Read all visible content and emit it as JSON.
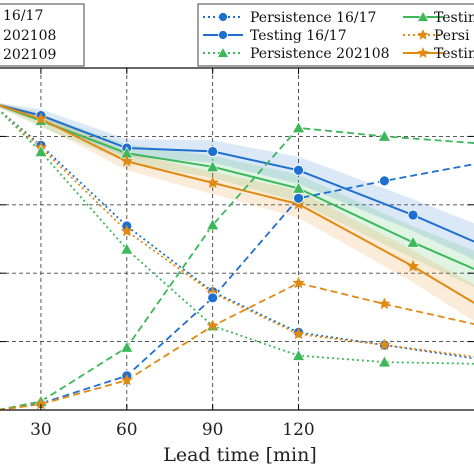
{
  "chart_data": {
    "type": "line",
    "xlabel": "Lead time [min]",
    "ylabel": "",
    "title": "",
    "x_ticks": [
      30,
      60,
      90,
      120
    ],
    "x_tick_labels": [
      "30",
      "60",
      "90",
      "120"
    ],
    "xlim": [
      15,
      182
    ],
    "ylim": [
      0,
      1
    ],
    "grid": true,
    "grid_style": "dashed",
    "left_legend_fragments": [
      "16/17",
      "202108",
      "202109"
    ],
    "legend_entries": [
      {
        "label": "Persistence 16/17",
        "color": "#1f6fd0",
        "style": "dotted",
        "marker": "circle"
      },
      {
        "label": "Testing 16/17",
        "color": "#1f6fd0",
        "style": "solid",
        "marker": "circle"
      },
      {
        "label": "Persistence 202108",
        "color": "#3cb85a",
        "style": "dotted",
        "marker": "triangle"
      },
      {
        "label": "Testin",
        "color": "#3cb85a",
        "style": "solid",
        "marker": "triangle"
      },
      {
        "label": "Persi",
        "color": "#e08a14",
        "style": "dotted",
        "marker": "star"
      },
      {
        "label": "Testin",
        "color": "#e08a14",
        "style": "solid",
        "marker": "star"
      }
    ],
    "series": [
      {
        "color": "#1f6fd0",
        "style": "solid",
        "marker": "circle",
        "band": true,
        "x": [
          15,
          30,
          60,
          90,
          120,
          160,
          182
        ],
        "y": [
          0.892,
          0.861,
          0.766,
          0.756,
          0.701,
          0.57,
          0.49
        ]
      },
      {
        "color": "#3cb85a",
        "style": "solid",
        "marker": "triangle",
        "band": true,
        "x": [
          15,
          30,
          60,
          90,
          120,
          160,
          182
        ],
        "y": [
          0.892,
          0.846,
          0.751,
          0.711,
          0.648,
          0.49,
          0.41
        ]
      },
      {
        "color": "#e08a14",
        "style": "solid",
        "marker": "star",
        "band": true,
        "x": [
          15,
          30,
          60,
          90,
          120,
          160,
          182
        ],
        "y": [
          0.892,
          0.851,
          0.727,
          0.664,
          0.602,
          0.42,
          0.31
        ]
      },
      {
        "color": "#1f6fd0",
        "style": "dotted",
        "marker": "circle",
        "band": false,
        "x": [
          15,
          30,
          60,
          90,
          120,
          150,
          182
        ],
        "y": [
          0.88,
          0.774,
          0.538,
          0.346,
          0.227,
          0.19,
          0.15
        ]
      },
      {
        "color": "#e08a14",
        "style": "dotted",
        "marker": "star",
        "band": false,
        "x": [
          15,
          30,
          60,
          90,
          120,
          150,
          182
        ],
        "y": [
          0.88,
          0.767,
          0.523,
          0.342,
          0.222,
          0.19,
          0.155
        ]
      },
      {
        "color": "#3cb85a",
        "style": "dotted",
        "marker": "triangle",
        "band": false,
        "x": [
          15,
          30,
          60,
          90,
          120,
          150,
          182
        ],
        "y": [
          0.88,
          0.755,
          0.47,
          0.246,
          0.159,
          0.14,
          0.135
        ]
      },
      {
        "color": "#1f6fd0",
        "style": "dashed",
        "marker": "circle",
        "band": false,
        "x": [
          15,
          30,
          60,
          90,
          120,
          150,
          182
        ],
        "y": [
          0.0,
          0.019,
          0.1,
          0.328,
          0.619,
          0.67,
          0.72
        ]
      },
      {
        "color": "#3cb85a",
        "style": "dashed",
        "marker": "triangle",
        "band": false,
        "x": [
          15,
          30,
          60,
          90,
          120,
          150,
          182
        ],
        "y": [
          0.0,
          0.025,
          0.183,
          0.541,
          0.825,
          0.8,
          0.78
        ]
      },
      {
        "color": "#e08a14",
        "style": "dashed",
        "marker": "star",
        "band": false,
        "x": [
          15,
          30,
          60,
          90,
          120,
          150,
          182
        ],
        "y": [
          0.0,
          0.017,
          0.087,
          0.246,
          0.371,
          0.31,
          0.25
        ]
      }
    ]
  }
}
